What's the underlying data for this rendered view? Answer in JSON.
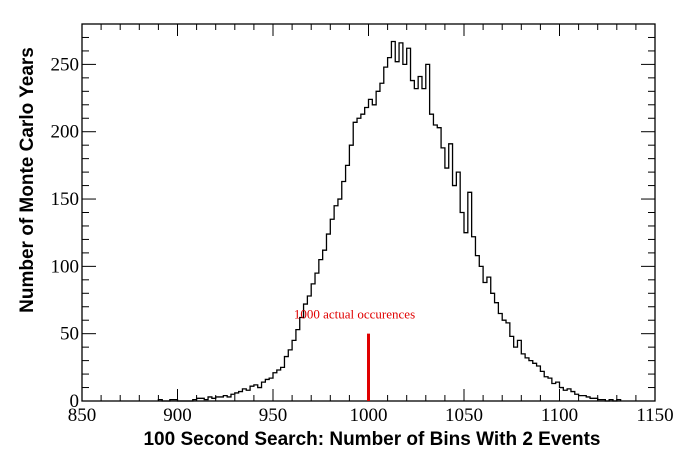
{
  "chart_data": {
    "type": "bar",
    "style": "step-histogram",
    "xlabel": "100 Second Search: Number of Bins With 2 Events",
    "ylabel": "Number of Monte Carlo Years",
    "xlim": [
      850,
      1150
    ],
    "ylim": [
      0,
      280
    ],
    "x_ticks": [
      850,
      900,
      950,
      1000,
      1050,
      1100,
      1150
    ],
    "y_ticks": [
      0,
      50,
      100,
      150,
      200,
      250
    ],
    "bin_width": 2,
    "bins": [
      [
        890,
        1
      ],
      [
        892,
        0
      ],
      [
        894,
        0
      ],
      [
        896,
        1
      ],
      [
        898,
        1
      ],
      [
        900,
        0
      ],
      [
        902,
        0
      ],
      [
        904,
        0
      ],
      [
        906,
        0
      ],
      [
        908,
        1
      ],
      [
        910,
        2
      ],
      [
        912,
        2
      ],
      [
        914,
        1
      ],
      [
        916,
        3
      ],
      [
        918,
        2
      ],
      [
        920,
        3
      ],
      [
        922,
        3
      ],
      [
        924,
        4
      ],
      [
        926,
        3
      ],
      [
        928,
        5
      ],
      [
        930,
        6
      ],
      [
        932,
        7
      ],
      [
        934,
        9
      ],
      [
        936,
        8
      ],
      [
        938,
        11
      ],
      [
        940,
        12
      ],
      [
        942,
        10
      ],
      [
        944,
        14
      ],
      [
        946,
        16
      ],
      [
        948,
        17
      ],
      [
        950,
        21
      ],
      [
        952,
        23
      ],
      [
        954,
        25
      ],
      [
        956,
        33
      ],
      [
        958,
        38
      ],
      [
        960,
        45
      ],
      [
        962,
        53
      ],
      [
        964,
        62
      ],
      [
        966,
        72
      ],
      [
        968,
        78
      ],
      [
        970,
        87
      ],
      [
        972,
        95
      ],
      [
        974,
        105
      ],
      [
        976,
        112
      ],
      [
        978,
        124
      ],
      [
        980,
        135
      ],
      [
        982,
        145
      ],
      [
        984,
        150
      ],
      [
        986,
        163
      ],
      [
        988,
        175
      ],
      [
        990,
        190
      ],
      [
        992,
        207
      ],
      [
        994,
        210
      ],
      [
        996,
        213
      ],
      [
        998,
        218
      ],
      [
        1000,
        224
      ],
      [
        1002,
        220
      ],
      [
        1004,
        230
      ],
      [
        1006,
        236
      ],
      [
        1008,
        248
      ],
      [
        1010,
        255
      ],
      [
        1012,
        267
      ],
      [
        1014,
        252
      ],
      [
        1016,
        266
      ],
      [
        1018,
        250
      ],
      [
        1020,
        262
      ],
      [
        1022,
        238
      ],
      [
        1024,
        232
      ],
      [
        1026,
        241
      ],
      [
        1028,
        232
      ],
      [
        1030,
        250
      ],
      [
        1032,
        213
      ],
      [
        1034,
        205
      ],
      [
        1036,
        203
      ],
      [
        1038,
        188
      ],
      [
        1040,
        173
      ],
      [
        1042,
        191
      ],
      [
        1044,
        160
      ],
      [
        1046,
        170
      ],
      [
        1048,
        140
      ],
      [
        1050,
        125
      ],
      [
        1052,
        155
      ],
      [
        1054,
        122
      ],
      [
        1056,
        108
      ],
      [
        1058,
        100
      ],
      [
        1060,
        88
      ],
      [
        1062,
        92
      ],
      [
        1064,
        80
      ],
      [
        1066,
        73
      ],
      [
        1068,
        65
      ],
      [
        1070,
        60
      ],
      [
        1072,
        58
      ],
      [
        1074,
        48
      ],
      [
        1076,
        40
      ],
      [
        1078,
        45
      ],
      [
        1080,
        35
      ],
      [
        1082,
        32
      ],
      [
        1084,
        30
      ],
      [
        1086,
        28
      ],
      [
        1088,
        26
      ],
      [
        1090,
        22
      ],
      [
        1092,
        18
      ],
      [
        1094,
        17
      ],
      [
        1096,
        13
      ],
      [
        1098,
        14
      ],
      [
        1100,
        10
      ],
      [
        1102,
        8
      ],
      [
        1104,
        9
      ],
      [
        1106,
        7
      ],
      [
        1108,
        5
      ],
      [
        1110,
        4
      ],
      [
        1112,
        4
      ],
      [
        1114,
        3
      ],
      [
        1116,
        2
      ],
      [
        1118,
        2
      ],
      [
        1120,
        1
      ],
      [
        1122,
        1
      ],
      [
        1124,
        0
      ],
      [
        1126,
        1
      ],
      [
        1128,
        0
      ],
      [
        1130,
        1
      ]
    ],
    "marker": {
      "x": 1000,
      "height": 50,
      "label": "1000 actual occurences",
      "color": "#e00000"
    }
  }
}
